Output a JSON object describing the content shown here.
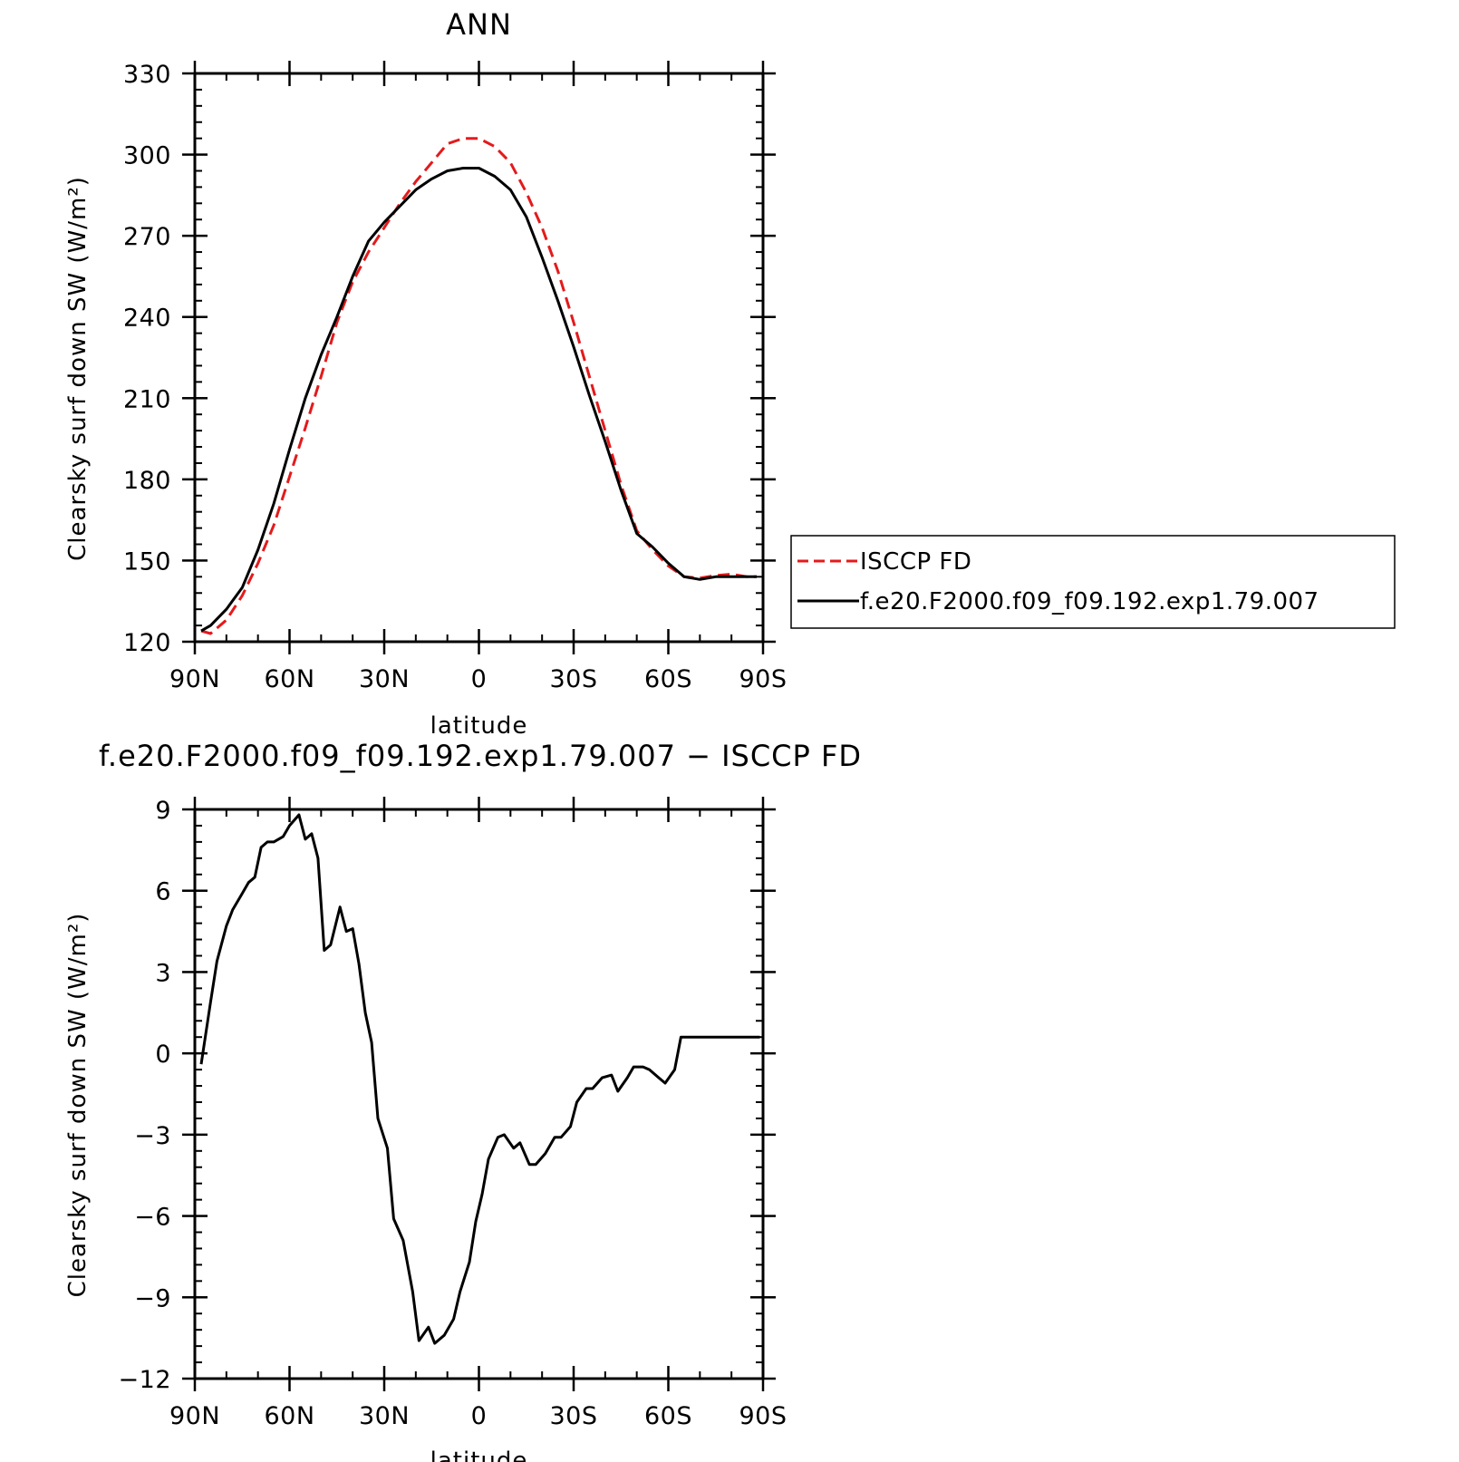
{
  "chart_data": [
    {
      "type": "line",
      "title": "ANN",
      "xlabel": "latitude",
      "ylabel": "Clearsky surf down SW (W/m²)",
      "xlim": [
        90,
        -90
      ],
      "ylim": [
        120,
        330
      ],
      "x_ticks": [
        {
          "value": 90,
          "label": "90N"
        },
        {
          "value": 60,
          "label": "60N"
        },
        {
          "value": 30,
          "label": "30N"
        },
        {
          "value": 0,
          "label": "0"
        },
        {
          "value": -30,
          "label": "30S"
        },
        {
          "value": -60,
          "label": "60S"
        },
        {
          "value": -90,
          "label": "90S"
        }
      ],
      "y_ticks": [
        120,
        150,
        180,
        210,
        240,
        270,
        300,
        330
      ],
      "legend_position": "right",
      "series": [
        {
          "name": "ISCCP FD",
          "color": "#e41a1c",
          "dash": "dashed",
          "x": [
            88,
            85,
            80,
            75,
            70,
            65,
            60,
            55,
            50,
            45,
            40,
            35,
            30,
            25,
            20,
            15,
            10,
            5,
            2,
            0,
            -5,
            -10,
            -15,
            -20,
            -25,
            -30,
            -35,
            -40,
            -45,
            -50,
            -55,
            -60,
            -65,
            -70,
            -75,
            -80,
            -85,
            -88
          ],
          "y": [
            124,
            123,
            128,
            137,
            149,
            163,
            181,
            199,
            218,
            238,
            253,
            264,
            273,
            282,
            290,
            297,
            304,
            306,
            306,
            306,
            303,
            297,
            286,
            273,
            257,
            238,
            218,
            198,
            178,
            161,
            154,
            148,
            144,
            143.5,
            144.5,
            145,
            144,
            144
          ],
          "values_note": ""
        },
        {
          "name": "f.e20.F2000.f09_f09.192.exp1.79.007",
          "color": "#000000",
          "dash": "solid",
          "x": [
            88,
            85,
            80,
            75,
            70,
            65,
            60,
            55,
            50,
            45,
            40,
            35,
            30,
            25,
            20,
            15,
            10,
            5,
            2,
            0,
            -5,
            -10,
            -15,
            -20,
            -25,
            -30,
            -35,
            -40,
            -45,
            -50,
            -55,
            -60,
            -65,
            -70,
            -75,
            -80,
            -85,
            -88
          ],
          "y": [
            124,
            126,
            132,
            140,
            154,
            171,
            191,
            210,
            226,
            240,
            255,
            268,
            275,
            281,
            287,
            291,
            294,
            295,
            295,
            295,
            292,
            287,
            277,
            262,
            246,
            229,
            211,
            194,
            176,
            160,
            155,
            149,
            144,
            143,
            144,
            144,
            144,
            144
          ]
        }
      ]
    },
    {
      "type": "line",
      "title": "f.e20.F2000.f09_f09.192.exp1.79.007 − ISCCP FD",
      "xlabel": "latitude",
      "ylabel": "Clearsky surf down SW (W/m²)",
      "xlim": [
        90,
        -90
      ],
      "ylim": [
        -12,
        9
      ],
      "x_ticks": [
        {
          "value": 90,
          "label": "90N"
        },
        {
          "value": 60,
          "label": "60N"
        },
        {
          "value": 30,
          "label": "30N"
        },
        {
          "value": 0,
          "label": "0"
        },
        {
          "value": -30,
          "label": "30S"
        },
        {
          "value": -60,
          "label": "60S"
        },
        {
          "value": -90,
          "label": "90S"
        }
      ],
      "y_ticks": [
        {
          "value": 9,
          "label": "9"
        },
        {
          "value": 6,
          "label": "6"
        },
        {
          "value": 3,
          "label": "3"
        },
        {
          "value": 0,
          "label": "0"
        },
        {
          "value": -3,
          "label": "−3"
        },
        {
          "value": -6,
          "label": "−6"
        },
        {
          "value": -9,
          "label": "−9"
        },
        {
          "value": -12,
          "label": "−12"
        }
      ],
      "series": [
        {
          "color": "#000000",
          "dash": "solid",
          "x": [
            88,
            85,
            83,
            80,
            78,
            75,
            73,
            71,
            69,
            67,
            65,
            62,
            60,
            57,
            55,
            53,
            51,
            49,
            47,
            44,
            42,
            40,
            38,
            36,
            34,
            32,
            29,
            27,
            24,
            21,
            19,
            16,
            14,
            11,
            8,
            6,
            3,
            1,
            -1,
            -3,
            -6,
            -8,
            -11,
            -13,
            -16,
            -18,
            -21,
            -24,
            -26,
            -29,
            -31,
            -34,
            -36,
            -39,
            -42,
            -44,
            -47,
            -49,
            -52,
            -54,
            -57,
            -59,
            -62,
            -64,
            -67,
            -69,
            -72,
            -74,
            -77,
            -79,
            -82,
            -84,
            -87,
            -89
          ],
          "y": [
            -0.4,
            1.9,
            3.4,
            4.7,
            5.3,
            5.9,
            6.3,
            6.5,
            7.6,
            7.8,
            7.8,
            8.0,
            8.4,
            8.8,
            7.9,
            8.1,
            7.2,
            3.8,
            4.0,
            5.4,
            4.5,
            4.6,
            3.3,
            1.5,
            0.4,
            -2.4,
            -3.5,
            -6.1,
            -6.9,
            -8.8,
            -10.6,
            -10.1,
            -10.7,
            -10.4,
            -9.8,
            -8.8,
            -7.7,
            -6.2,
            -5.2,
            -3.9,
            -3.1,
            -3.0,
            -3.5,
            -3.3,
            -4.1,
            -4.1,
            -3.7,
            -3.1,
            -3.1,
            -2.7,
            -1.8,
            -1.3,
            -1.3,
            -0.9,
            -0.8,
            -1.4,
            -0.9,
            -0.5,
            -0.5,
            -0.6,
            -0.9,
            -1.1,
            -0.6,
            0.6,
            0.6,
            0.6,
            0.6,
            0.6,
            0.6,
            0.6,
            0.6,
            0.6,
            0.6,
            0.6
          ]
        }
      ]
    }
  ]
}
